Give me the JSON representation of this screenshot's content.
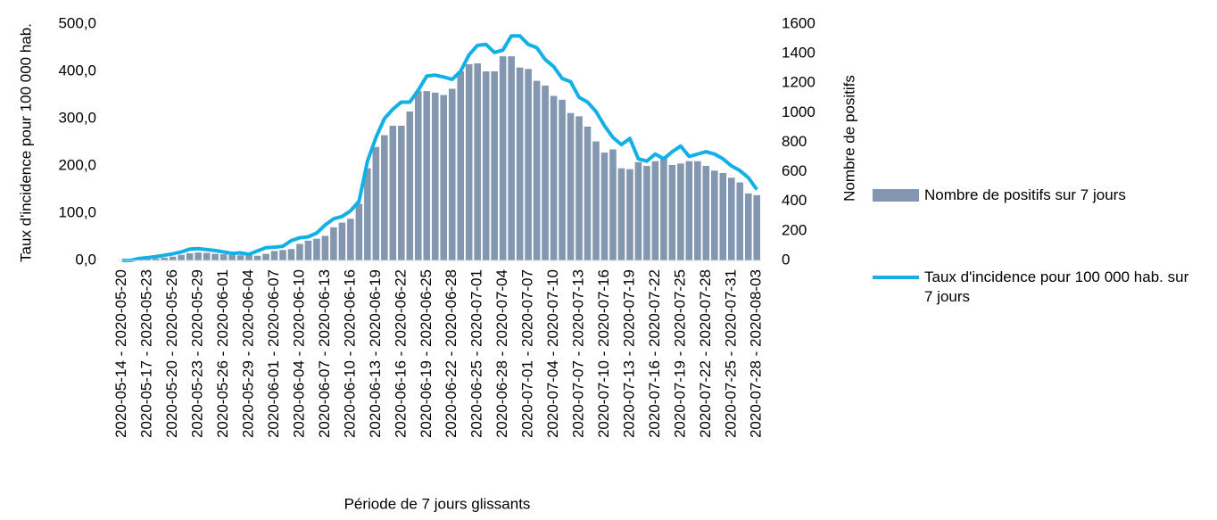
{
  "chart_data": {
    "type": "bar-line",
    "x_label": "Période de 7 jours glissants",
    "y_label": "Taux d'incidence pour 100 000 hab.",
    "y2_label": "Nombre de positifs",
    "categories": [
      "2020-05-14 - 2020-05-20",
      null,
      null,
      "2020-05-17 - 2020-05-23",
      null,
      null,
      "2020-05-20 - 2020-05-26",
      null,
      null,
      "2020-05-23 - 2020-05-29",
      null,
      null,
      "2020-05-26 - 2020-06-01",
      null,
      null,
      "2020-05-29 - 2020-06-04",
      null,
      null,
      "2020-06-01 - 2020-06-07",
      null,
      null,
      "2020-06-04 - 2020-06-10",
      null,
      null,
      "2020-06-07 - 2020-06-13",
      null,
      null,
      "2020-06-10 - 2020-06-16",
      null,
      null,
      "2020-06-13 - 2020-06-19",
      null,
      null,
      "2020-06-16 - 2020-06-22",
      null,
      null,
      "2020-06-19 - 2020-06-25",
      null,
      null,
      "2020-06-22 - 2020-06-28",
      null,
      null,
      "2020-06-25 - 2020-07-01",
      null,
      null,
      "2020-06-28 - 2020-07-04",
      null,
      null,
      "2020-07-01 - 2020-07-07",
      null,
      null,
      "2020-07-04 - 2020-07-10",
      null,
      null,
      "2020-07-07 - 2020-07-13",
      null,
      null,
      "2020-07-10 - 2020-07-16",
      null,
      null,
      "2020-07-13 - 2020-07-19",
      null,
      null,
      "2020-07-16 - 2020-07-22",
      null,
      null,
      "2020-07-19 - 2020-07-25",
      null,
      null,
      "2020-07-22 - 2020-07-28",
      null,
      null,
      "2020-07-25 - 2020-07-31",
      null,
      null,
      "2020-07-28 - 2020-08-03"
    ],
    "series": [
      {
        "name": "Nombre de positifs sur 7 jours",
        "type": "bar",
        "axis": "y2",
        "color": "#8497b0",
        "values": [
          0,
          3,
          6,
          10,
          13,
          19,
          26,
          38,
          48,
          54,
          51,
          45,
          42,
          38,
          35,
          38,
          32,
          45,
          64,
          70,
          77,
          112,
          134,
          147,
          166,
          224,
          256,
          282,
          384,
          624,
          768,
          848,
          912,
          912,
          1008,
          1146,
          1146,
          1136,
          1120,
          1162,
          1280,
          1328,
          1334,
          1280,
          1280,
          1382,
          1382,
          1306,
          1296,
          1216,
          1184,
          1114,
          1088,
          998,
          976,
          906,
          806,
          730,
          752,
          624,
          618,
          666,
          640,
          672,
          704,
          646,
          656,
          672,
          672,
          640,
          608,
          592,
          560,
          528,
          454,
          442
        ]
      },
      {
        "name": "Taux d'incidence pour 100 000 hab. sur 7 jours",
        "type": "line",
        "axis": "y",
        "color": "#12b0e6",
        "values": [
          0,
          0,
          4,
          6,
          8,
          11,
          14,
          18,
          24,
          25,
          23,
          21,
          18,
          15,
          16,
          13,
          20,
          27,
          28,
          30,
          42,
          48,
          50,
          58,
          75,
          88,
          93,
          105,
          125,
          210,
          260,
          300,
          320,
          335,
          335,
          360,
          390,
          392,
          388,
          383,
          400,
          435,
          455,
          457,
          440,
          445,
          475,
          475,
          457,
          450,
          425,
          410,
          385,
          378,
          345,
          335,
          315,
          285,
          260,
          245,
          258,
          215,
          210,
          225,
          215,
          230,
          242,
          220,
          225,
          230,
          225,
          215,
          200,
          190,
          175,
          150
        ]
      }
    ],
    "ylim": [
      0,
      500
    ],
    "yticks": [
      {
        "value": 0,
        "label": "0,0"
      },
      {
        "value": 100,
        "label": "100,0"
      },
      {
        "value": 200,
        "label": "200,0"
      },
      {
        "value": 300,
        "label": "300,0"
      },
      {
        "value": 400,
        "label": "400,0"
      },
      {
        "value": 500,
        "label": "500,0"
      }
    ],
    "y2lim": [
      0,
      1600
    ],
    "y2ticks": [
      0,
      200,
      400,
      600,
      800,
      1000,
      1200,
      1400,
      1600
    ],
    "legend": "right",
    "grid": false
  }
}
